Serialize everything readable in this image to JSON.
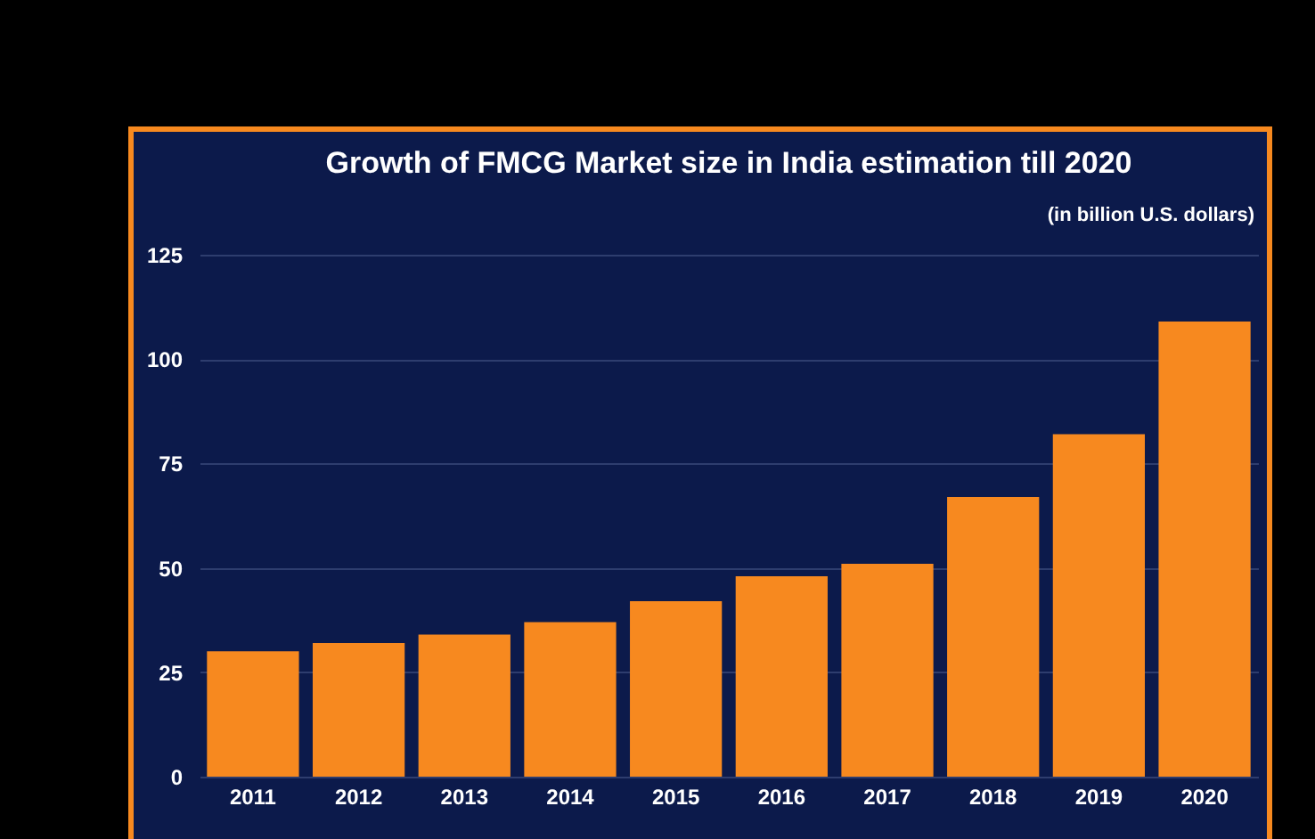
{
  "chart_data": {
    "type": "bar",
    "title": "Growth of FMCG Market size in India estimation till 2020",
    "subtitle": "(in billion U.S. dollars)",
    "categories": [
      "2011",
      "2012",
      "2013",
      "2014",
      "2015",
      "2016",
      "2017",
      "2018",
      "2019",
      "2020"
    ],
    "values": [
      30,
      32,
      34,
      37,
      42,
      48,
      51,
      67,
      82,
      109
    ],
    "color": "#f7891f",
    "ylim": [
      0,
      125
    ],
    "yticks": [
      0,
      25,
      50,
      75,
      100,
      125
    ],
    "grid": "y"
  }
}
